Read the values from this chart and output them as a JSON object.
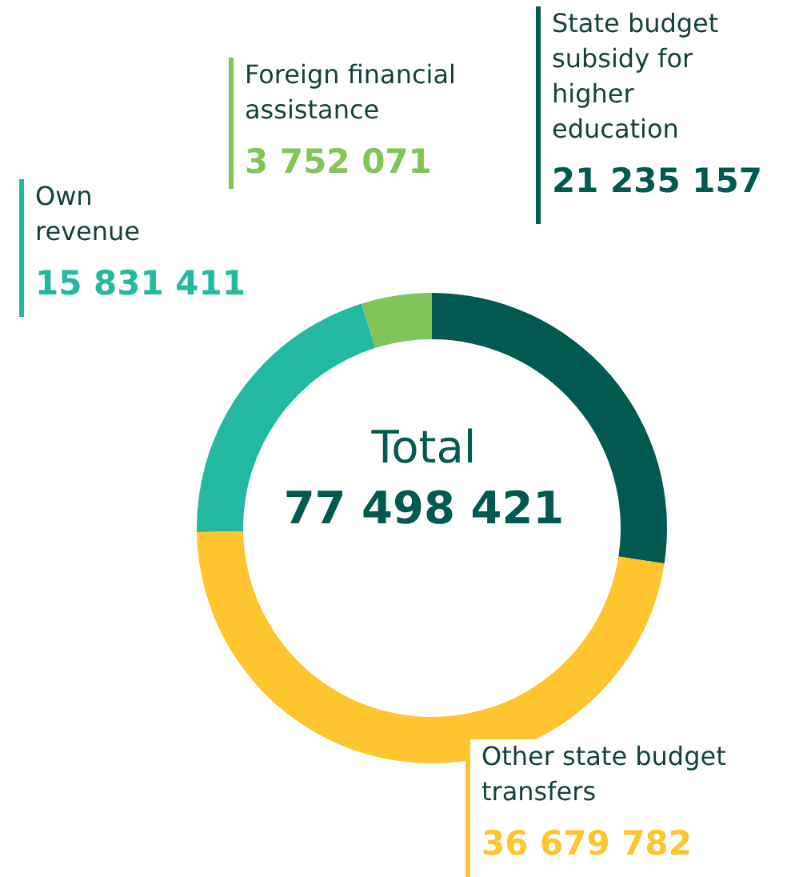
{
  "chart_data": {
    "type": "donut",
    "categories": [
      "State budget subsidy for higher education",
      "Other state budget transfers",
      "Own revenue",
      "Foreign financial assistance"
    ],
    "values": [
      21235157,
      36679782,
      15831411,
      3752071
    ],
    "colors": [
      "#02594f",
      "#fec52e",
      "#22b9a0",
      "#80c45a"
    ],
    "value_labels": [
      "21 235 157",
      "36 679 782",
      "15 831 411",
      "3 752 071"
    ],
    "annotations": [
      "Total",
      "77 498 421"
    ]
  }
}
